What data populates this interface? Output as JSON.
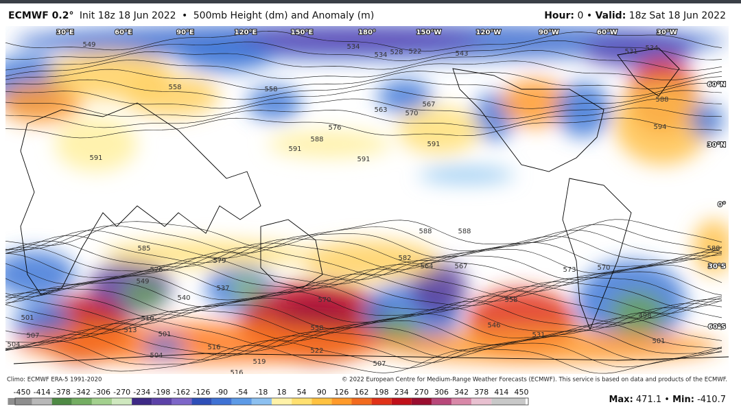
{
  "header": {
    "title": "ECMWF 0.2°",
    "init": "Init 18z 18 Jun 2022",
    "separator": "•",
    "product": "500mb Height (dm) and Anomaly (m)",
    "hour_label": "Hour:",
    "hour": "0",
    "valid_label": "Valid:",
    "valid": "18z Sat 18 Jun 2022"
  },
  "map": {
    "longitude_labels": [
      "30°E",
      "60°E",
      "90°E",
      "120°E",
      "150°E",
      "180°",
      "150°W",
      "120°W",
      "90°W",
      "60°W",
      "30°W"
    ],
    "latitude_labels": [
      "60°N",
      "30°N",
      "0°",
      "30°S",
      "60°S"
    ],
    "contour_labels": [
      549,
      534,
      534,
      522,
      528,
      543,
      531,
      534,
      558,
      558,
      563,
      570,
      567,
      576,
      588,
      591,
      591,
      591,
      591,
      588,
      594,
      588,
      588,
      585,
      576,
      579,
      582,
      564,
      567,
      573,
      570,
      588,
      549,
      537,
      540,
      510,
      513,
      501,
      507,
      504,
      519,
      516,
      522,
      516,
      558,
      570,
      507,
      546,
      558,
      531,
      501,
      498,
      501,
      504
    ]
  },
  "footer": {
    "climo": "Climo: ECMWF ERA-5 1991-2020",
    "copyright": "© 2022 European Centre for Medium-Range Weather Forecasts (ECMWF). This service is based on data and products of the ECMWF."
  },
  "colorbar": {
    "ticks": [
      -450,
      -414,
      -378,
      -342,
      -306,
      -270,
      -234,
      -198,
      -162,
      -126,
      -90,
      -54,
      -18,
      18,
      54,
      90,
      126,
      162,
      198,
      234,
      270,
      306,
      342,
      378,
      414,
      450
    ]
  },
  "stats": {
    "max_label": "Max:",
    "max": "471.1",
    "separator": "•",
    "min_label": "Min:",
    "min": "-410.7"
  }
}
